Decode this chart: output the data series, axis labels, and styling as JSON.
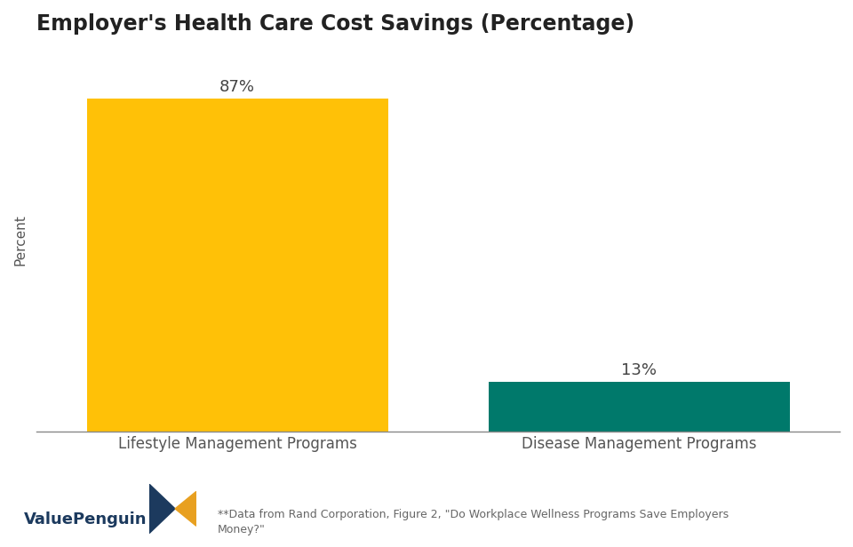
{
  "title": "Employer's Health Care Cost Savings (Percentage)",
  "categories": [
    "Lifestyle Management Programs",
    "Disease Management Programs"
  ],
  "values": [
    87,
    13
  ],
  "bar_colors": [
    "#FFC107",
    "#00796B"
  ],
  "ylabel": "Percent",
  "label_texts": [
    "87%",
    "13%"
  ],
  "footnote": "**Data from Rand Corporation, Figure 2, \"Do Workplace Wellness Programs Save Employers\nMoney?\"",
  "brand": "ValuePenguin",
  "background_color": "#FFFFFF",
  "title_fontsize": 17,
  "axis_label_fontsize": 11,
  "tick_label_fontsize": 12,
  "bar_label_fontsize": 13,
  "ylim": [
    0,
    100
  ],
  "bar_width": 0.75,
  "logo_left_color": "#1C3A5E",
  "logo_right_color": "#E8A020"
}
